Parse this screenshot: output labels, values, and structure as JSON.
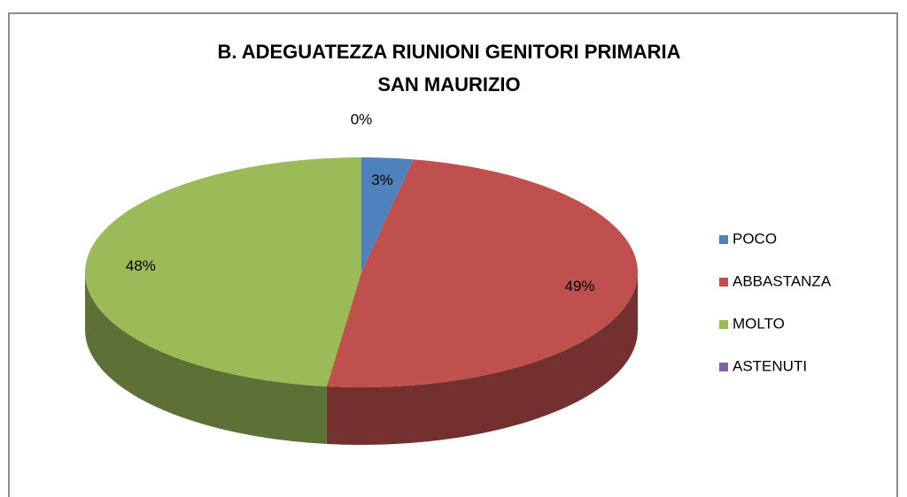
{
  "chart_data": {
    "type": "pie3d",
    "title": [
      "B. ADEGUATEZZA RIUNIONI GENITORI PRIMARIA",
      "SAN MAURIZIO"
    ],
    "categories": [
      "POCO",
      "ABBASTANZA",
      "MOLTO",
      "ASTENUTI"
    ],
    "values": [
      3,
      49,
      48,
      0
    ],
    "value_labels": [
      "3%",
      "49%",
      "48%",
      "0%"
    ],
    "colors": [
      "#4f81bd",
      "#c0504d",
      "#9bbb59",
      "#8064a2"
    ],
    "legend": "right"
  }
}
